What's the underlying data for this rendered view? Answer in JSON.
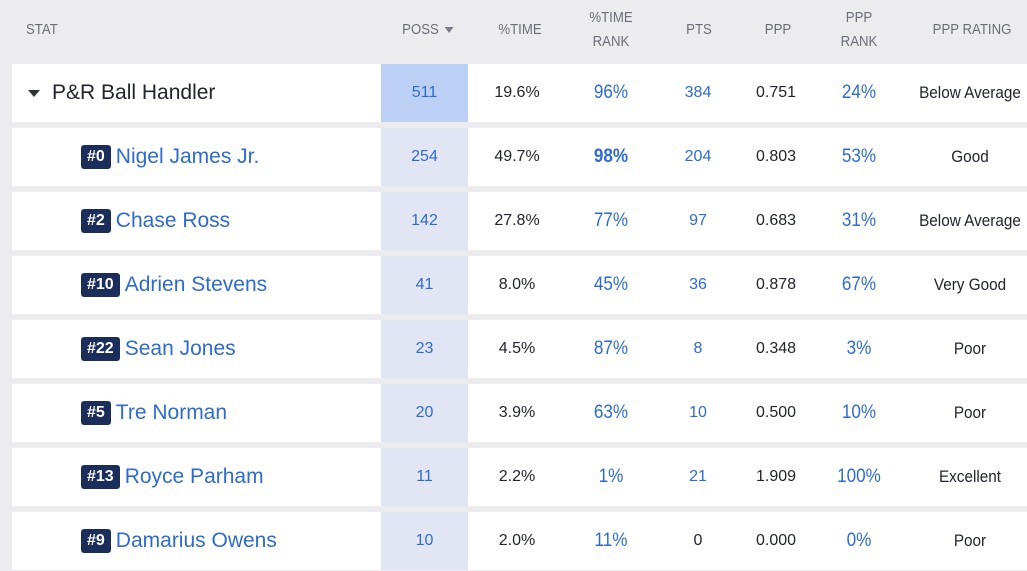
{
  "headers": {
    "stat": "STAT",
    "poss": "POSS",
    "time": "%TIME",
    "time_rank_1": "%TIME",
    "time_rank_2": "RANK",
    "pts": "PTS",
    "ppp": "PPP",
    "ppp_rank_1": "PPP",
    "ppp_rank_2": "RANK",
    "ppp_rating": "PPP RATING"
  },
  "group": {
    "name": "P&R Ball Handler",
    "poss": "511",
    "time": "19.6%",
    "time_rank": "96%",
    "pts": "384",
    "ppp": "0.751",
    "ppp_rank": "24%",
    "rating": "Below Average"
  },
  "players": [
    {
      "number": "#0",
      "name": "Nigel James Jr.",
      "poss": "254",
      "time": "49.7%",
      "time_rank": "98%",
      "pts": "204",
      "ppp": "0.803",
      "ppp_rank": "53%",
      "rating": "Good"
    },
    {
      "number": "#2",
      "name": "Chase Ross",
      "poss": "142",
      "time": "27.8%",
      "time_rank": "77%",
      "pts": "97",
      "ppp": "0.683",
      "ppp_rank": "31%",
      "rating": "Below Average"
    },
    {
      "number": "#10",
      "name": "Adrien Stevens",
      "poss": "41",
      "time": "8.0%",
      "time_rank": "45%",
      "pts": "36",
      "ppp": "0.878",
      "ppp_rank": "67%",
      "rating": "Very Good"
    },
    {
      "number": "#22",
      "name": "Sean Jones",
      "poss": "23",
      "time": "4.5%",
      "time_rank": "87%",
      "pts": "8",
      "ppp": "0.348",
      "ppp_rank": "3%",
      "rating": "Poor"
    },
    {
      "number": "#5",
      "name": "Tre Norman",
      "poss": "20",
      "time": "3.9%",
      "time_rank": "63%",
      "pts": "10",
      "ppp": "0.500",
      "ppp_rank": "10%",
      "rating": "Poor"
    },
    {
      "number": "#13",
      "name": "Royce Parham",
      "poss": "11",
      "time": "2.2%",
      "time_rank": "1%",
      "pts": "21",
      "ppp": "1.909",
      "ppp_rank": "100%",
      "rating": "Excellent"
    },
    {
      "number": "#9",
      "name": "Damarius Owens",
      "poss": "10",
      "time": "2.0%",
      "time_rank": "11%",
      "pts": "0",
      "ppp": "0.000",
      "ppp_rank": "0%",
      "rating": "Poor"
    }
  ],
  "colors": {
    "link": "#2e6bd1",
    "badge": "#1b2d5b",
    "poss_highlight": "#bcd0f5",
    "poss_column": "#e2e5f4"
  },
  "icons": {
    "sort": "sort-down-arrow-icon",
    "expand": "caret-down-icon"
  }
}
